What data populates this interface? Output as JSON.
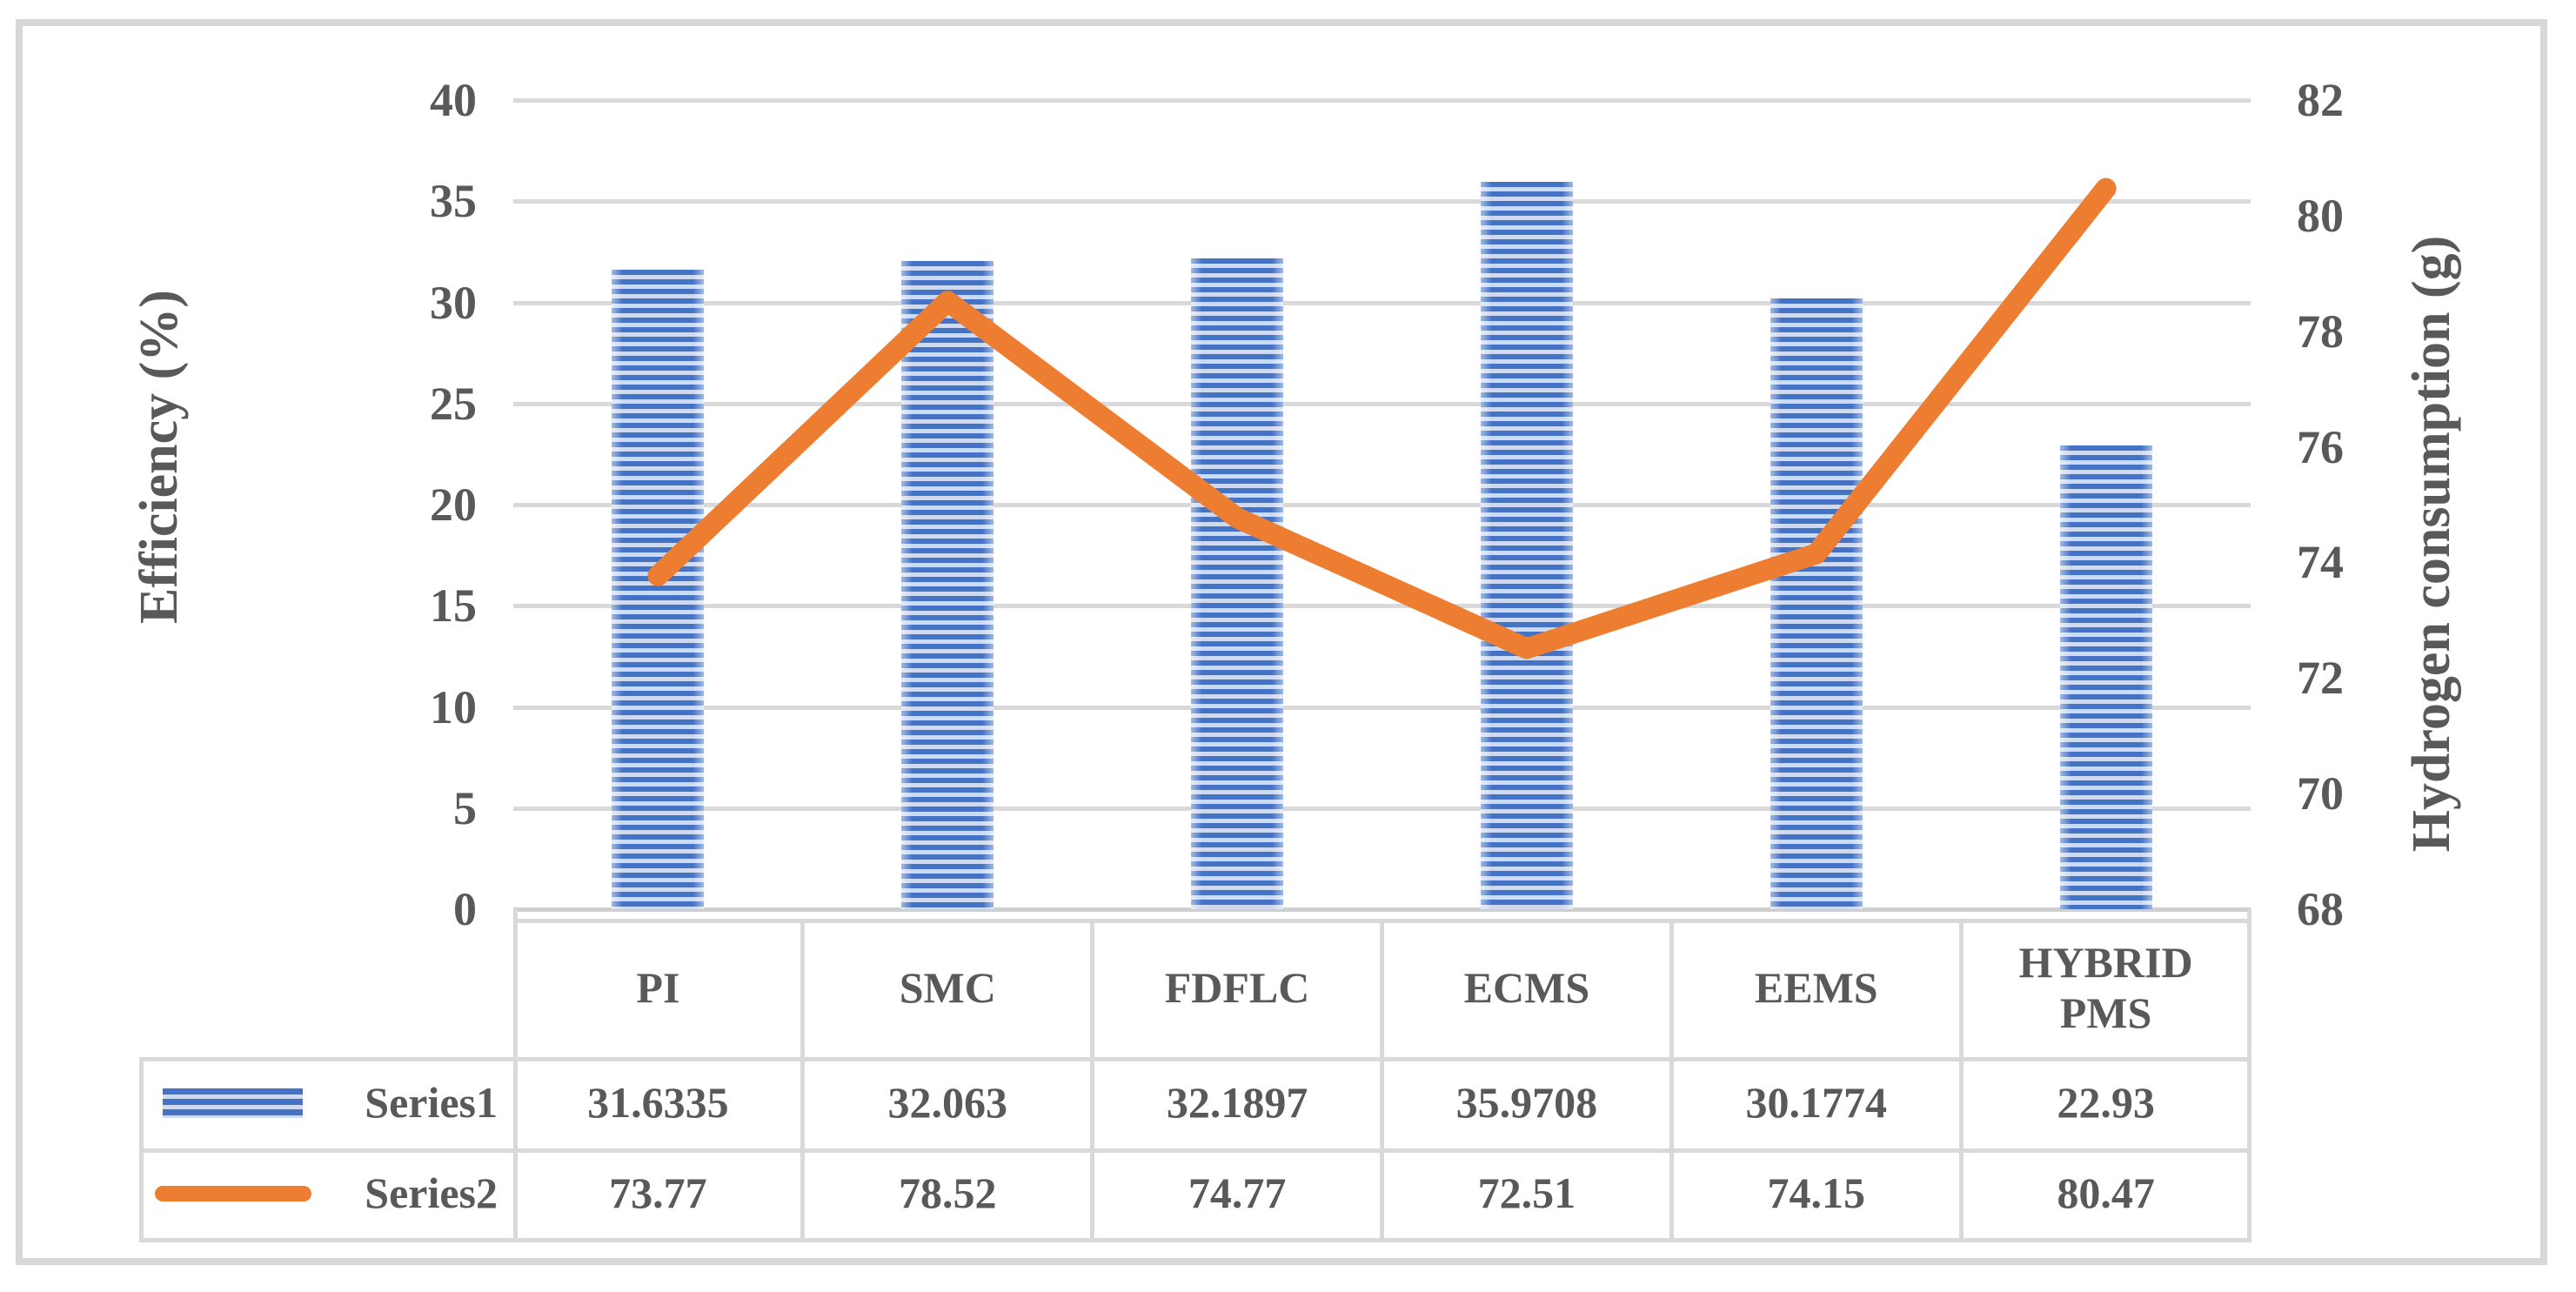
{
  "chart_data": {
    "type": "combo-bar-line",
    "categories": [
      "PI",
      "SMC",
      "FDFLC",
      "ECMS",
      "EEMS",
      "HYBRID PMS"
    ],
    "series": [
      {
        "name": "Series1",
        "chart_type": "bar",
        "axis": "left",
        "values": [
          31.6335,
          32.063,
          32.1897,
          35.9708,
          30.1774,
          22.93
        ],
        "value_labels": [
          "31.6335",
          "32.063",
          "32.1897",
          "35.9708",
          "30.1774",
          "22.93"
        ],
        "color": "#4472C4",
        "pattern": "horizontal-stripes"
      },
      {
        "name": "Series2",
        "chart_type": "line",
        "axis": "right",
        "values": [
          73.77,
          78.52,
          74.77,
          72.51,
          74.15,
          80.47
        ],
        "value_labels": [
          "73.77",
          "78.52",
          "74.77",
          "72.51",
          "74.15",
          "80.47"
        ],
        "color": "#ED7D31"
      }
    ],
    "left_axis": {
      "title": "Efficiency (%)",
      "min": 0,
      "max": 40,
      "step": 5,
      "tick_labels": [
        "0",
        "5",
        "10",
        "15",
        "20",
        "25",
        "30",
        "35",
        "40"
      ]
    },
    "right_axis": {
      "title": "Hydrogen consumption (g)",
      "min": 68,
      "max": 82,
      "step": 2,
      "tick_labels": [
        "68",
        "70",
        "72",
        "74",
        "76",
        "78",
        "80",
        "82"
      ]
    },
    "grid": true,
    "legend_position": "data-table-left",
    "colors": {
      "bar_stripe": "#4472C4",
      "bar_stripe_light": "#CDDAF2",
      "line": "#ED7D31",
      "text": "#595959",
      "grid": "#D9D9D9",
      "table_border": "#D9D9D9",
      "axis_line": "#CFCFCF",
      "frame_border": "#D8D8D8"
    }
  }
}
